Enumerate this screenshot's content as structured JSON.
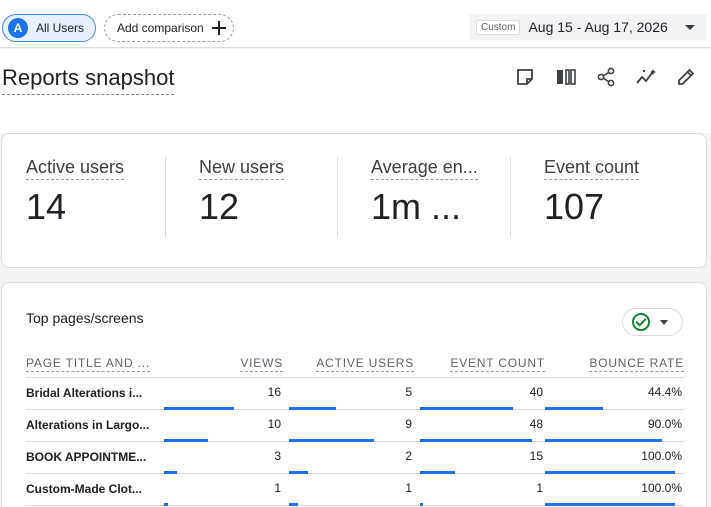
{
  "topbar": {
    "segment_badge": "A",
    "segment_label": "All Users",
    "add_comparison_label": "Add comparison",
    "date_tag": "Custom",
    "date_range": "Aug 15 - Aug 17, 2026"
  },
  "page": {
    "title": "Reports snapshot"
  },
  "toolbar_icons": [
    "note-icon",
    "compare-icon",
    "share-icon",
    "insights-icon",
    "edit-icon"
  ],
  "metrics": [
    {
      "label": "Active users",
      "value": "14"
    },
    {
      "label": "New users",
      "value": "12"
    },
    {
      "label": "Average en...",
      "value": "1m ..."
    },
    {
      "label": "Event count",
      "value": "107"
    }
  ],
  "table": {
    "title": "Top pages/screens",
    "headers": [
      "PAGE TITLE AND ...",
      "VIEWS",
      "ACTIVE USERS",
      "EVENT COUNT",
      "BOUNCE RATE"
    ],
    "rows": [
      {
        "name": "Bridal Alterations i...",
        "views": "16",
        "active_users": "5",
        "event_count": "40",
        "bounce_rate": "44.4%",
        "views_frac": 1.0,
        "users_frac": 0.556,
        "events_frac": 0.833,
        "bounce_frac": 0.444
      },
      {
        "name": "Alterations in Largo...",
        "views": "10",
        "active_users": "9",
        "event_count": "48",
        "bounce_rate": "90.0%",
        "views_frac": 0.625,
        "users_frac": 1.0,
        "events_frac": 1.0,
        "bounce_frac": 0.9
      },
      {
        "name": "BOOK APPOINTME...",
        "views": "3",
        "active_users": "2",
        "event_count": "15",
        "bounce_rate": "100.0%",
        "views_frac": 0.1875,
        "users_frac": 0.222,
        "events_frac": 0.3125,
        "bounce_frac": 1.0
      },
      {
        "name": "Custom-Made Clot...",
        "views": "1",
        "active_users": "1",
        "event_count": "1",
        "bounce_rate": "100.0%",
        "views_frac": 0.0625,
        "users_frac": 0.111,
        "events_frac": 0.02,
        "bounce_frac": 1.0
      }
    ]
  },
  "colors": {
    "accent": "#1a73e8",
    "success": "#188038"
  }
}
